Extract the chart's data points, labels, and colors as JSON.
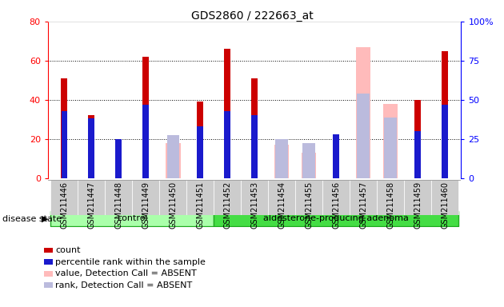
{
  "title": "GDS2860 / 222663_at",
  "samples": [
    "GSM211446",
    "GSM211447",
    "GSM211448",
    "GSM211449",
    "GSM211450",
    "GSM211451",
    "GSM211452",
    "GSM211453",
    "GSM211454",
    "GSM211455",
    "GSM211456",
    "GSM211457",
    "GSM211458",
    "GSM211459",
    "GSM211460"
  ],
  "ctrl_indices": [
    0,
    1,
    2,
    3,
    4,
    5
  ],
  "ald_indices": [
    6,
    7,
    8,
    9,
    10,
    11,
    12,
    13,
    14
  ],
  "count": [
    51,
    32,
    19,
    62,
    null,
    39,
    66,
    51,
    null,
    null,
    21,
    null,
    null,
    40,
    65
  ],
  "percentile_rank": [
    43,
    38,
    25,
    47,
    null,
    33,
    43,
    40,
    null,
    null,
    28,
    null,
    null,
    30,
    47
  ],
  "absent_value": [
    null,
    null,
    null,
    null,
    18,
    null,
    null,
    null,
    17,
    13,
    null,
    67,
    38,
    null,
    null
  ],
  "absent_rank": [
    null,
    null,
    null,
    null,
    22,
    null,
    null,
    null,
    20,
    18,
    null,
    43,
    31,
    null,
    null
  ],
  "ylim_left": [
    0,
    80
  ],
  "ylim_right": [
    0,
    100
  ],
  "yticks_left": [
    0,
    20,
    40,
    60,
    80
  ],
  "yticks_right": [
    0,
    25,
    50,
    75,
    100
  ],
  "colors": {
    "count": "#cc0000",
    "percentile": "#1a1acc",
    "absent_value": "#ffbbbb",
    "absent_rank": "#bbbbdd",
    "control_bg": "#aaffaa",
    "adenoma_bg": "#44dd44",
    "tick_bg": "#cccccc"
  },
  "group_labels": [
    "control",
    "aldosterone-producing adenoma"
  ],
  "legend_items": [
    {
      "label": "count",
      "color": "#cc0000"
    },
    {
      "label": "percentile rank within the sample",
      "color": "#1a1acc"
    },
    {
      "label": "value, Detection Call = ABSENT",
      "color": "#ffbbbb"
    },
    {
      "label": "rank, Detection Call = ABSENT",
      "color": "#bbbbdd"
    }
  ],
  "disease_state_label": "disease state"
}
